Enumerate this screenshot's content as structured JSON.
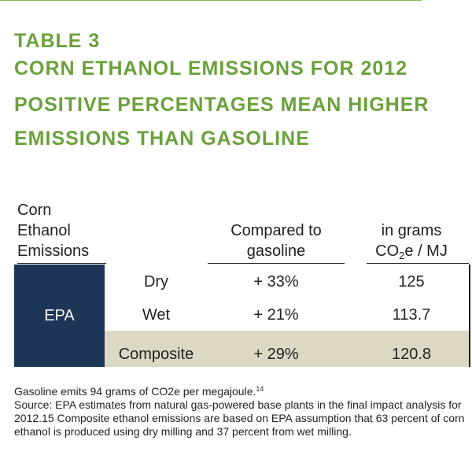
{
  "header": {
    "table_label": "TABLE 3",
    "title": "CORN ETHANOL EMISSIONS FOR 2012",
    "subtitle_line1": "POSITIVE PERCENTAGES MEAN HIGHER",
    "subtitle_line2": "EMISSIONS THAN GASOLINE"
  },
  "columns": {
    "first": [
      "Corn",
      "Ethanol",
      "Emissions"
    ],
    "second": [
      "Compared to",
      "gasoline"
    ],
    "third_line1": "in grams",
    "third_line2_prefix": "CO",
    "third_line2_sub": "2",
    "third_line2_suffix": "e / MJ"
  },
  "group_label": "EPA",
  "rows": [
    {
      "type": "Dry",
      "compared": "+ 33%",
      "grams": "125"
    },
    {
      "type": "Wet",
      "compared": "+ 21%",
      "grams": "113.7"
    },
    {
      "type": "Composite",
      "compared": "+ 29%",
      "grams": "120.8"
    }
  ],
  "footnote": {
    "line1": "Gasoline emits 94 grams of CO2e per megajoule.",
    "line1_ref": "14",
    "body": "Source: EPA estimates from natural gas-powered base plants in the final impact analysis for 2012.15 Composite ethanol emissions are based on EPA assumption that 63 percent of corn ethanol is produced using dry milling and 37 percent from wet milling."
  },
  "colors": {
    "heading_green": "#6aa13b",
    "epa_navy": "#1d3557",
    "composite_band": "#ddd8c4"
  }
}
